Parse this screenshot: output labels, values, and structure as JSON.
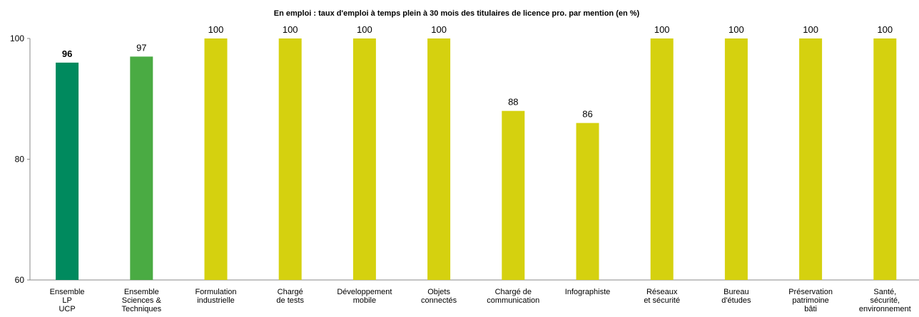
{
  "chart_data": {
    "type": "bar",
    "title": "En emploi : taux d'emploi à temps plein à 30 mois des titulaires de licence pro. par mention (en %)",
    "categories": [
      "Ensemble\nLP\nUCP",
      "Ensemble\nSciences &\nTechniques",
      "Formulation\nindustrielle",
      "Chargé\nde tests",
      "Développement\nmobile",
      "Objets\nconnectés",
      "Chargé de\ncommunication",
      "Infographiste",
      "Réseaux\net sécurité",
      "Bureau\nd'études",
      "Préservation\npatrimoine\nbâti",
      "Santé,\nsécurité,\nenvironnement"
    ],
    "values": [
      96,
      97,
      100,
      100,
      100,
      100,
      88,
      86,
      100,
      100,
      100,
      100
    ],
    "colors": [
      "#008a5e",
      "#4aab43",
      "#d5d10f",
      "#d5d10f",
      "#d5d10f",
      "#d5d10f",
      "#d5d10f",
      "#d5d10f",
      "#d5d10f",
      "#d5d10f",
      "#d5d10f",
      "#d5d10f"
    ],
    "ylim": [
      60,
      100
    ],
    "yticks": [
      60,
      80,
      100
    ],
    "grid": false
  }
}
